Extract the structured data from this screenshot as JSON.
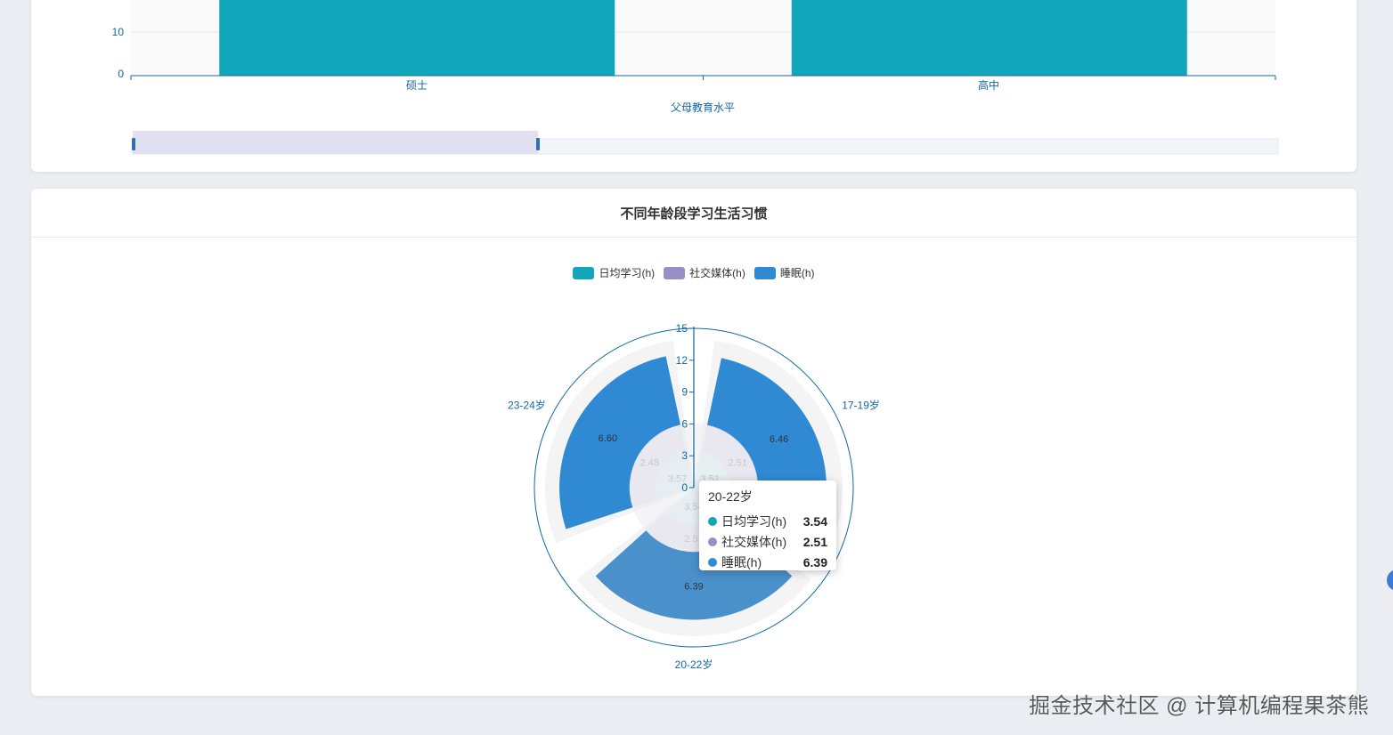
{
  "colors": {
    "study": "#11a6ba",
    "social": "#9a8ec6",
    "sleep": "#2f8ad3",
    "axis": "#1068a3",
    "bar": "#11a6ba"
  },
  "top_chart": {
    "y_ticks": [
      "10",
      "0"
    ],
    "categories": [
      "硕士",
      "高中"
    ],
    "xlabel": "父母教育水平"
  },
  "bottom_card": {
    "title": "不同年龄段学习生活习惯"
  },
  "legend": [
    {
      "label": "日均学习(h)",
      "color": "#11a6ba"
    },
    {
      "label": "社交媒体(h)",
      "color": "#9a8ec6"
    },
    {
      "label": "睡眠(h)",
      "color": "#2f8ad3"
    }
  ],
  "chart_data": [
    {
      "type": "bar",
      "categories": [
        "硕士",
        "高中"
      ],
      "xlabel": "父母教育水平",
      "ylabel": "",
      "y_ticks": [
        0,
        10
      ]
    },
    {
      "type": "bar",
      "subtype": "polar-stacked",
      "title": "不同年龄段学习生活习惯",
      "categories": [
        "17-19岁",
        "20-22岁",
        "23-24岁"
      ],
      "radius_ticks": [
        "0",
        "3",
        "6",
        "9",
        "12",
        "15"
      ],
      "rlim": [
        0,
        15
      ],
      "series": [
        {
          "name": "日均学习(h)",
          "values": [
            3.51,
            3.54,
            3.57
          ]
        },
        {
          "name": "社交媒体(h)",
          "values": [
            2.51,
            2.51,
            2.48
          ]
        },
        {
          "name": "睡眠(h)",
          "values": [
            6.46,
            6.39,
            6.6
          ]
        }
      ],
      "data_labels": [
        "3.51",
        "2.51",
        "6.46",
        "3.54",
        "2.51",
        "6.39",
        "3.57",
        "2.48",
        "6.60"
      ]
    }
  ],
  "tooltip": {
    "title": "20-22岁",
    "rows": [
      {
        "name": "日均学习(h)",
        "value": "3.54",
        "color": "#11a6ba"
      },
      {
        "name": "社交媒体(h)",
        "value": "2.51",
        "color": "#9a8ec6"
      },
      {
        "name": "睡眠(h)",
        "value": "6.39",
        "color": "#2f8ad3"
      }
    ]
  },
  "watermark": "掘金技术社区 @ 计算机编程果茶熊"
}
